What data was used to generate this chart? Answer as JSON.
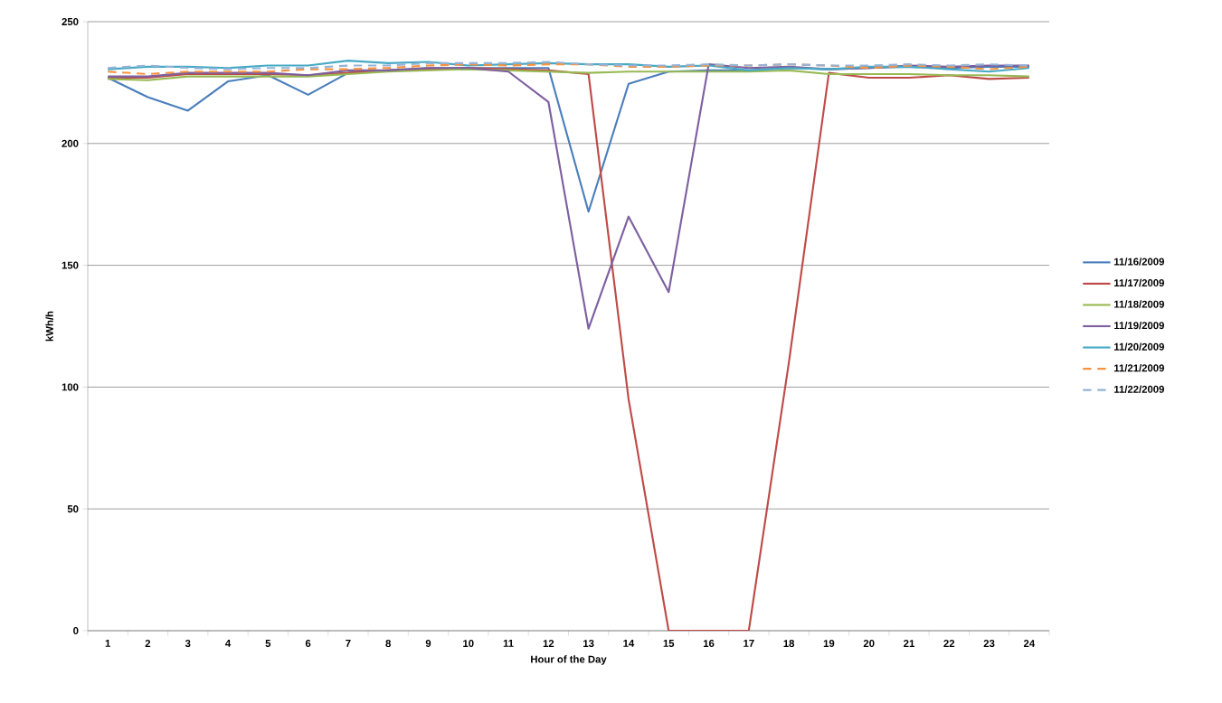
{
  "chart_data": {
    "type": "line",
    "xlabel": "Hour of the Day",
    "ylabel": "kWh/h",
    "categories": [
      "1",
      "2",
      "3",
      "4",
      "5",
      "6",
      "7",
      "8",
      "9",
      "10",
      "11",
      "12",
      "13",
      "14",
      "15",
      "16",
      "17",
      "18",
      "19",
      "20",
      "21",
      "22",
      "23",
      "24"
    ],
    "ylim": [
      0,
      250
    ],
    "yticks": [
      0,
      50,
      100,
      150,
      200,
      250
    ],
    "grid": "y",
    "legend": "right",
    "marker": "none",
    "series": [
      {
        "name": "11/16/2009",
        "color": "#4a7ebb",
        "line_style": "solid",
        "values": [
          227,
          219,
          213.5,
          225.5,
          228,
          220,
          229,
          230,
          231,
          231,
          231,
          231,
          172,
          224.5,
          229.5,
          230,
          230,
          231,
          230.5,
          231,
          231.5,
          231,
          231.5,
          231.5
        ]
      },
      {
        "name": "11/17/2009",
        "color": "#be4b48",
        "line_style": "solid",
        "values": [
          227,
          227,
          228.5,
          228.5,
          228.5,
          228,
          229,
          230,
          230.5,
          231,
          230.5,
          230,
          228.5,
          95,
          0,
          0,
          0,
          110,
          229,
          227,
          227,
          228,
          226.5,
          227
        ]
      },
      {
        "name": "11/18/2009",
        "color": "#98b954",
        "line_style": "solid",
        "values": [
          226.5,
          226,
          227.5,
          227.5,
          227.5,
          227.5,
          228.5,
          229.5,
          230,
          230.5,
          230,
          229.5,
          229,
          229.5,
          229.5,
          229.5,
          229.5,
          230,
          228.5,
          228.5,
          228.5,
          228,
          228,
          227.5
        ]
      },
      {
        "name": "11/19/2009",
        "color": "#7d60a0",
        "line_style": "solid",
        "values": [
          227.5,
          227.5,
          229,
          229,
          229,
          228,
          230,
          230,
          231,
          231,
          229.5,
          217,
          124,
          170,
          139,
          232.5,
          231,
          231.5,
          230.5,
          231,
          232,
          231.5,
          232,
          232
        ]
      },
      {
        "name": "11/20/2009",
        "color": "#46aac5",
        "line_style": "solid",
        "values": [
          230.5,
          231.5,
          231.5,
          231,
          232,
          232,
          234,
          233,
          233.5,
          232,
          232.5,
          233,
          232.5,
          232.5,
          231.5,
          232,
          230,
          231,
          230.5,
          231.5,
          231.5,
          230.5,
          229.5,
          231
        ]
      },
      {
        "name": "11/21/2009",
        "color": "#f69240",
        "line_style": "dashed",
        "values": [
          229.5,
          228.5,
          229.5,
          229.5,
          229.5,
          230.5,
          230.5,
          231,
          232,
          232.5,
          232,
          232.5,
          232.5,
          231.5,
          231.5,
          232,
          232,
          232.5,
          232,
          231,
          232,
          231.5,
          230.5,
          231.5
        ]
      },
      {
        "name": "11/22/2009",
        "color": "#95b3d7",
        "line_style": "dashed",
        "values": [
          231,
          232,
          231,
          230.5,
          231,
          231,
          232,
          232,
          233,
          233,
          233,
          233.5,
          232.5,
          232,
          232,
          232.5,
          232,
          232.5,
          232,
          232,
          232.5,
          232,
          232.5,
          232
        ]
      }
    ]
  }
}
